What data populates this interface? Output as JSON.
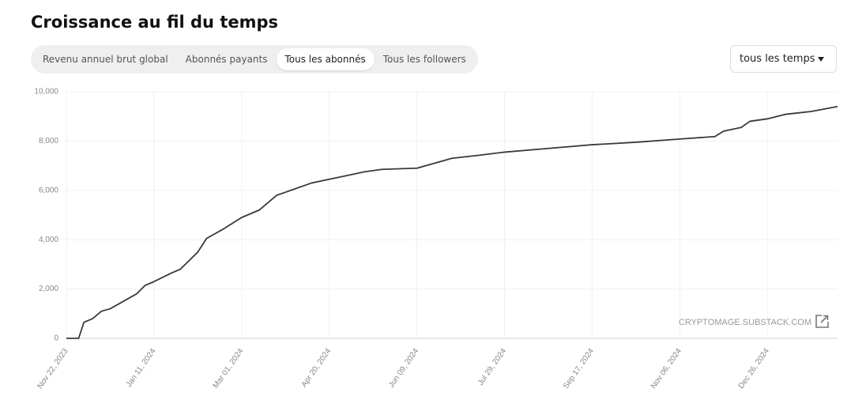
{
  "header": {
    "title": "Croissance au fil du temps"
  },
  "tabs": [
    "Revenu annuel brut global",
    "Abonnés payants",
    "Tous les abonnés",
    "Tous les followers"
  ],
  "active_tab": 2,
  "dropdown": "tous les temps",
  "chart_data": {
    "type": "line",
    "watermark": "CRYPTOMAGE.SUBSTACK.COM",
    "x": [
      "2023-11-22",
      "2023-11-29",
      "2023-12-02",
      "2023-12-07",
      "2023-12-12",
      "2023-12-17",
      "2023-12-22",
      "2023-12-27",
      "2024-01-01",
      "2024-01-06",
      "2024-01-11",
      "2024-01-21",
      "2024-01-26",
      "2024-01-31",
      "2024-02-05",
      "2024-02-10",
      "2024-02-20",
      "2024-03-01",
      "2024-03-11",
      "2024-03-16",
      "2024-03-21",
      "2024-03-31",
      "2024-04-10",
      "2024-04-20",
      "2024-04-30",
      "2024-05-10",
      "2024-05-20",
      "2024-06-09",
      "2024-06-19",
      "2024-06-29",
      "2024-07-14",
      "2024-07-29",
      "2024-08-23",
      "2024-09-17",
      "2024-10-12",
      "2024-11-06",
      "2024-11-26",
      "2024-12-01",
      "2024-12-11",
      "2024-12-16",
      "2024-12-26",
      "2025-01-05",
      "2025-01-20",
      "2025-02-04"
    ],
    "values": [
      0,
      0,
      650,
      800,
      1100,
      1200,
      1400,
      1600,
      1800,
      2150,
      2300,
      2650,
      2800,
      3150,
      3500,
      4050,
      4450,
      4900,
      5200,
      5500,
      5800,
      6050,
      6300,
      6450,
      6600,
      6750,
      6850,
      6900,
      7100,
      7300,
      7420,
      7550,
      7700,
      7850,
      7950,
      8080,
      8180,
      8400,
      8550,
      8800,
      8900,
      9080,
      9200,
      9400
    ],
    "color": "#3a3a3a",
    "xlim": [
      "2023-11-22",
      "2025-02-04"
    ],
    "xticks": [
      {
        "value": "2023-11-22",
        "label": "Nov 22, 2023"
      },
      {
        "value": "2024-01-11",
        "label": "Jan 11, 2024"
      },
      {
        "value": "2024-03-01",
        "label": "Mar 01, 2024"
      },
      {
        "value": "2024-04-20",
        "label": "Apr 20, 2024"
      },
      {
        "value": "2024-06-09",
        "label": "Jun 09, 2024"
      },
      {
        "value": "2024-07-29",
        "label": "Jul 29, 2024"
      },
      {
        "value": "2024-09-17",
        "label": "Sep 17, 2024"
      },
      {
        "value": "2024-11-06",
        "label": "Nov 06, 2024"
      },
      {
        "value": "2024-12-26",
        "label": "Dec 26, 2024"
      }
    ],
    "ylim": [
      0,
      10000
    ],
    "yticks": [
      0,
      {
        "value": 2000,
        "label": "2,000"
      },
      {
        "value": 4000,
        "label": "4,000"
      },
      {
        "value": 6000,
        "label": "6,000"
      },
      {
        "value": 8000,
        "label": "8,000"
      },
      {
        "value": 10000,
        "label": "10,000"
      }
    ],
    "grid": true
  }
}
